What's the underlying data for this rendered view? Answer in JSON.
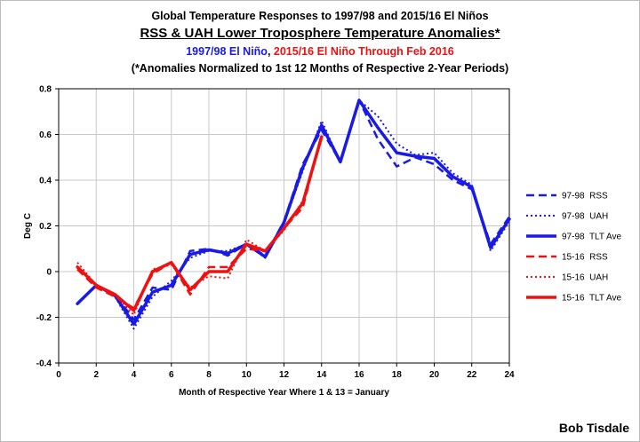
{
  "titles": {
    "line1": "Global Temperature Responses to 1997/98 and 2015/16 El Niños",
    "line2": "RSS & UAH Lower Troposphere Temperature Anomalies*",
    "line3_blue": "1997/98 El Niño",
    "line3_sep": ", ",
    "line3_red": "2015/16 El Niño Through Feb 2016",
    "line4": "(*Anomalies Normalized to 1st 12 Months of Respective 2-Year Periods)"
  },
  "credit": "Bob Tisdale",
  "colors": {
    "blue": "#1a1ae6",
    "red": "#ee1111",
    "grid": "#c8c8c8"
  },
  "chart_data": {
    "type": "line",
    "xlabel": "Month of Respective Year Where 1 & 13 = January",
    "ylabel": "Deg C",
    "xlim": [
      0,
      24
    ],
    "ylim": [
      -0.4,
      0.8
    ],
    "xticks": [
      0,
      2,
      4,
      6,
      8,
      10,
      12,
      14,
      16,
      18,
      20,
      22,
      24
    ],
    "yticks": [
      -0.4,
      -0.2,
      0,
      0.2,
      0.4,
      0.6,
      0.8
    ],
    "ytick_labels": [
      "-0.4",
      "-0.2",
      "0",
      "0.2",
      "0.4",
      "0.6",
      "0.8"
    ],
    "grid": true,
    "legend_position": "right",
    "series": [
      {
        "name": "97-98  RSS",
        "color": "#1a1ae6",
        "style": "dashed",
        "width": 2.5,
        "x": [
          1,
          2,
          3,
          4,
          5,
          6,
          7,
          8,
          9,
          10,
          11,
          12,
          13,
          14,
          15,
          16,
          17,
          18,
          19,
          20,
          21,
          22,
          23,
          24
        ],
        "y": [
          -0.14,
          -0.06,
          -0.1,
          -0.21,
          -0.07,
          -0.08,
          0.09,
          0.1,
          0.07,
          0.12,
          0.07,
          0.22,
          0.47,
          0.62,
          0.48,
          0.75,
          0.58,
          0.46,
          0.5,
          0.47,
          0.4,
          0.36,
          0.12,
          0.24
        ]
      },
      {
        "name": "97-98  UAH",
        "color": "#1a1ae6",
        "style": "dotted",
        "width": 2,
        "x": [
          1,
          2,
          3,
          4,
          5,
          6,
          7,
          8,
          9,
          10,
          11,
          12,
          13,
          14,
          15,
          16,
          17,
          18,
          19,
          20,
          21,
          22,
          23,
          24
        ],
        "y": [
          -0.14,
          -0.06,
          -0.11,
          -0.25,
          -0.11,
          -0.04,
          0.06,
          0.09,
          0.09,
          0.12,
          0.06,
          0.21,
          0.44,
          0.66,
          0.48,
          0.75,
          0.68,
          0.56,
          0.51,
          0.52,
          0.43,
          0.38,
          0.09,
          0.22
        ]
      },
      {
        "name": "97-98  TLT Ave",
        "color": "#1a1ae6",
        "style": "solid",
        "width": 3.5,
        "x": [
          1,
          2,
          3,
          4,
          5,
          6,
          7,
          8,
          9,
          10,
          11,
          12,
          13,
          14,
          15,
          16,
          17,
          18,
          19,
          20,
          21,
          22,
          23,
          24
        ],
        "y": [
          -0.14,
          -0.06,
          -0.105,
          -0.23,
          -0.09,
          -0.06,
          0.075,
          0.095,
          0.08,
          0.12,
          0.065,
          0.215,
          0.455,
          0.64,
          0.48,
          0.75,
          0.63,
          0.52,
          0.505,
          0.495,
          0.415,
          0.37,
          0.105,
          0.23
        ]
      },
      {
        "name": "15-16  RSS",
        "color": "#ee1111",
        "style": "dashed",
        "width": 2.5,
        "x": [
          1,
          2,
          3,
          4,
          5,
          6,
          7,
          8,
          9,
          10,
          11,
          12,
          13,
          14
        ],
        "y": [
          0.01,
          -0.07,
          -0.11,
          -0.16,
          -0.01,
          0.04,
          -0.1,
          0.02,
          0.02,
          0.1,
          0.09,
          0.19,
          0.28,
          0.6
        ]
      },
      {
        "name": "15-16  UAH",
        "color": "#ee1111",
        "style": "dotted",
        "width": 2,
        "x": [
          1,
          2,
          3,
          4,
          5,
          6,
          7,
          8,
          9,
          10,
          11,
          12,
          13,
          14
        ],
        "y": [
          0.04,
          -0.06,
          -0.1,
          -0.19,
          0.01,
          0.03,
          -0.07,
          -0.02,
          -0.03,
          0.14,
          0.09,
          0.18,
          0.31,
          0.58
        ]
      },
      {
        "name": "15-16  TLT Ave",
        "color": "#ee1111",
        "style": "solid",
        "width": 3.5,
        "x": [
          1,
          2,
          3,
          4,
          5,
          6,
          7,
          8,
          9,
          10,
          11,
          12,
          13,
          14
        ],
        "y": [
          0.02,
          -0.06,
          -0.1,
          -0.17,
          0.0,
          0.04,
          -0.08,
          0.0,
          0.0,
          0.12,
          0.09,
          0.19,
          0.3,
          0.59
        ]
      }
    ]
  }
}
